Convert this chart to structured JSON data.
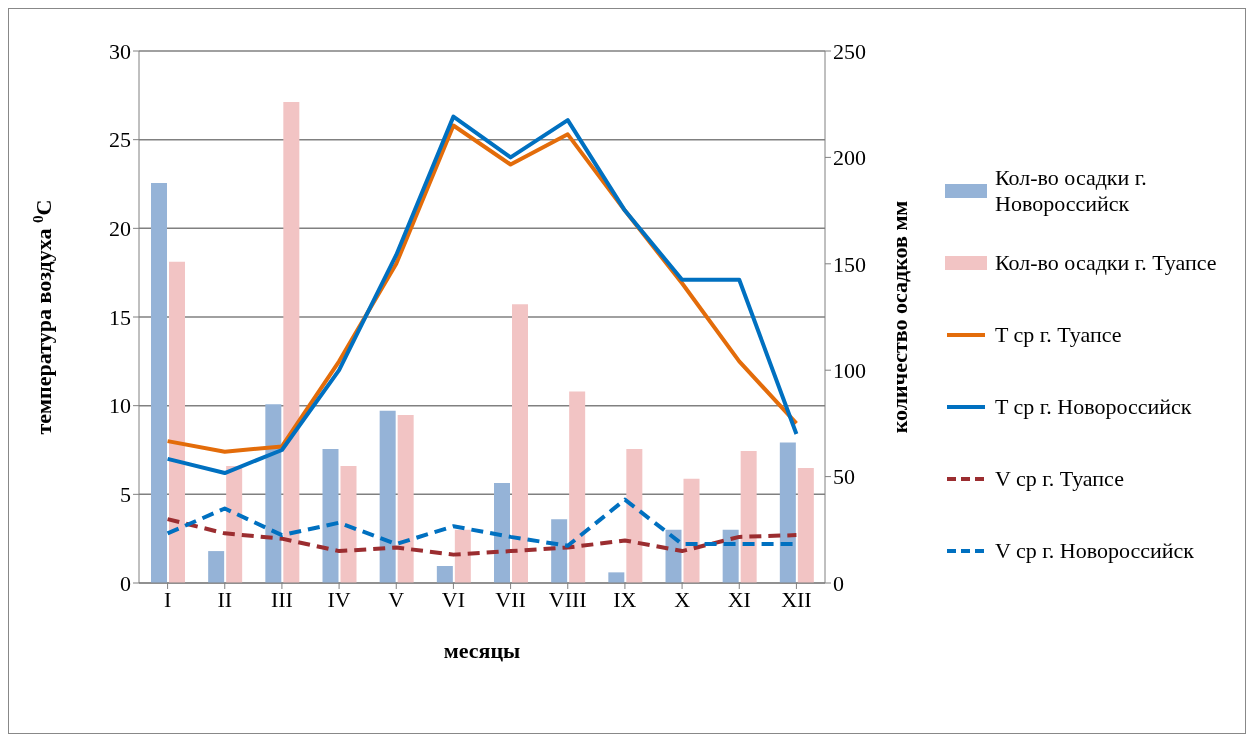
{
  "chart_data": {
    "type": "bar",
    "xlabel": "месяцы",
    "ylabel": "температура воздуха $^{0}$C",
    "y2label": "количество осадков мм",
    "categories": [
      "I",
      "II",
      "III",
      "IV",
      "V",
      "VI",
      "VII",
      "VIII",
      "IX",
      "X",
      "XI",
      "XII"
    ],
    "series": [
      {
        "name": "Кол-во осадки г. Новороссийск",
        "axis": "y2",
        "color": "#95b3d7",
        "values": [
          188,
          15,
          84,
          63,
          81,
          8,
          47,
          30,
          5,
          25,
          25,
          66
        ]
      },
      {
        "name": "Кол-во осадки г. Туапсе",
        "axis": "y2",
        "color": "#f2c4c4",
        "values": [
          151,
          55,
          226,
          55,
          79,
          25,
          131,
          90,
          63,
          49,
          62,
          54
        ]
      },
      {
        "name": "T ср г. Туапсе",
        "type": "line",
        "color": "#e36c0a",
        "line_style": "solid",
        "values": [
          8.0,
          7.4,
          7.7,
          12.5,
          18.0,
          25.8,
          23.6,
          25.3,
          21.0,
          16.9,
          12.5,
          9.0
        ]
      },
      {
        "name": "T ср г. Новороссийск",
        "type": "line",
        "color": "#0070c0",
        "line_style": "solid",
        "values": [
          7.0,
          6.2,
          7.5,
          12.0,
          18.5,
          26.3,
          24.0,
          26.1,
          21.0,
          17.1,
          17.1,
          8.4
        ]
      },
      {
        "name": "V ср г. Туапсе",
        "type": "line",
        "color": "#9b2d30",
        "line_style": "dashed",
        "values": [
          3.6,
          2.8,
          2.5,
          1.8,
          2.0,
          1.6,
          1.8,
          2.0,
          2.4,
          1.8,
          2.6,
          2.7
        ]
      },
      {
        "name": "V ср г. Новороссийск",
        "type": "line",
        "color": "#0070c0",
        "line_style": "dashed",
        "values": [
          2.8,
          4.2,
          2.7,
          3.4,
          2.2,
          3.2,
          2.6,
          2.1,
          4.7,
          2.2,
          2.2,
          2.2
        ]
      }
    ],
    "ylim": [
      0,
      30
    ],
    "yticks": [
      0,
      5,
      10,
      15,
      20,
      25,
      30
    ],
    "y2lim": [
      0,
      250
    ],
    "y2ticks": [
      0,
      50,
      100,
      150,
      200,
      250
    ],
    "grid": "y",
    "legend": "right",
    "marker": "none"
  }
}
